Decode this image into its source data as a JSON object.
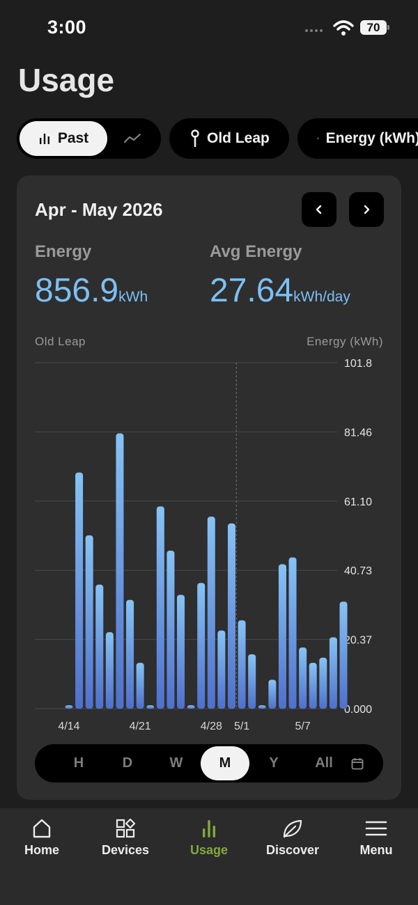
{
  "status": {
    "time": "3:00",
    "battery": "70"
  },
  "page": {
    "title": "Usage"
  },
  "chips": {
    "past": "Past",
    "device": "Old Leap",
    "energy": "Energy (kWh)"
  },
  "card": {
    "range": "Apr - May 2026",
    "energy_label": "Energy",
    "energy_value": "856.9",
    "energy_unit": "kWh",
    "avg_label": "Avg Energy",
    "avg_value": "27.64",
    "avg_unit": "kWh/day"
  },
  "chart_data": {
    "type": "bar",
    "series_label": "Old Leap",
    "ylabel": "Energy (kWh)",
    "ylim": [
      0,
      101.8
    ],
    "y_ticks": [
      "101.8",
      "81.46",
      "61.10",
      "40.73",
      "20.37",
      "0.000"
    ],
    "x_ticks": [
      {
        "label": "4/14",
        "index": 0
      },
      {
        "label": "4/21",
        "index": 7
      },
      {
        "label": "4/28",
        "index": 14
      },
      {
        "label": "5/1",
        "index": 17
      },
      {
        "label": "5/7",
        "index": 23
      }
    ],
    "values": [
      1.0,
      69.5,
      51.0,
      36.5,
      22.5,
      81.0,
      32.0,
      13.5,
      1.0,
      59.5,
      46.5,
      33.5,
      1.0,
      37.0,
      56.5,
      23.0,
      54.5,
      26.0,
      16.0,
      1.0,
      8.5,
      42.5,
      44.5,
      18.0,
      13.5,
      15.0,
      21.0,
      31.5
    ],
    "color_top": "#86c3f5",
    "color_bottom": "#4f70cc",
    "highlight_index": 17
  },
  "period": {
    "options": [
      "H",
      "D",
      "W",
      "M",
      "Y",
      "All"
    ],
    "active": "M"
  },
  "tabs": [
    {
      "label": "Home",
      "icon": "home-icon"
    },
    {
      "label": "Devices",
      "icon": "devices-icon"
    },
    {
      "label": "Usage",
      "icon": "usage-icon"
    },
    {
      "label": "Discover",
      "icon": "leaf-icon"
    },
    {
      "label": "Menu",
      "icon": "menu-icon"
    }
  ],
  "colors": {
    "accent": "#7cc0f5",
    "active_tab": "#83a93f"
  }
}
